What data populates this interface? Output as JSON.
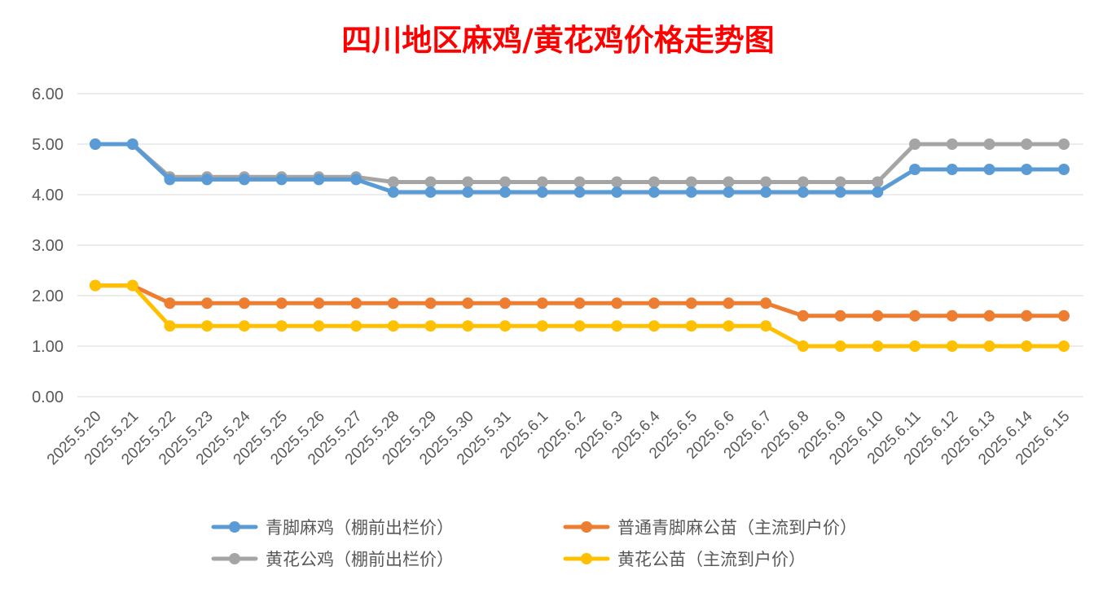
{
  "chart_data": {
    "type": "line",
    "title": "四川地区麻鸡/黄花鸡价格走势图",
    "xlabel": "",
    "ylabel": "",
    "ylim": [
      0,
      6
    ],
    "y_ticks": [
      "0.00",
      "1.00",
      "2.00",
      "3.00",
      "4.00",
      "5.00",
      "6.00"
    ],
    "grid": true,
    "legend_position": "bottom",
    "categories": [
      "2025.5.20",
      "2025.5.21",
      "2025.5.22",
      "2025.5.23",
      "2025.5.24",
      "2025.5.25",
      "2025.5.26",
      "2025.5.27",
      "2025.5.28",
      "2025.5.29",
      "2025.5.30",
      "2025.5.31",
      "2025.6.1",
      "2025.6.2",
      "2025.6.3",
      "2025.6.4",
      "2025.6.5",
      "2025.6.6",
      "2025.6.7",
      "2025.6.8",
      "2025.6.9",
      "2025.6.10",
      "2025.6.11",
      "2025.6.12",
      "2025.6.13",
      "2025.6.14",
      "2025.6.15"
    ],
    "series": [
      {
        "name": "青脚麻鸡（棚前出栏价）",
        "color": "#5b9bd5",
        "values": [
          5.0,
          5.0,
          4.3,
          4.3,
          4.3,
          4.3,
          4.3,
          4.3,
          4.05,
          4.05,
          4.05,
          4.05,
          4.05,
          4.05,
          4.05,
          4.05,
          4.05,
          4.05,
          4.05,
          4.05,
          4.05,
          4.05,
          4.5,
          4.5,
          4.5,
          4.5,
          4.5
        ]
      },
      {
        "name": "普通青脚麻公苗（主流到户价）",
        "color": "#ed7d31",
        "values": [
          2.2,
          2.2,
          1.85,
          1.85,
          1.85,
          1.85,
          1.85,
          1.85,
          1.85,
          1.85,
          1.85,
          1.85,
          1.85,
          1.85,
          1.85,
          1.85,
          1.85,
          1.85,
          1.85,
          1.6,
          1.6,
          1.6,
          1.6,
          1.6,
          1.6,
          1.6,
          1.6
        ]
      },
      {
        "name": "黄花公鸡（棚前出栏价）",
        "color": "#a5a5a5",
        "values": [
          5.0,
          5.0,
          4.35,
          4.35,
          4.35,
          4.35,
          4.35,
          4.35,
          4.25,
          4.25,
          4.25,
          4.25,
          4.25,
          4.25,
          4.25,
          4.25,
          4.25,
          4.25,
          4.25,
          4.25,
          4.25,
          4.25,
          5.0,
          5.0,
          5.0,
          5.0,
          5.0
        ]
      },
      {
        "name": "黄花公苗（主流到户价）",
        "color": "#ffc000",
        "values": [
          2.2,
          2.2,
          1.4,
          1.4,
          1.4,
          1.4,
          1.4,
          1.4,
          1.4,
          1.4,
          1.4,
          1.4,
          1.4,
          1.4,
          1.4,
          1.4,
          1.4,
          1.4,
          1.4,
          1.0,
          1.0,
          1.0,
          1.0,
          1.0,
          1.0,
          1.0,
          1.0
        ]
      }
    ],
    "draw_order": [
      2,
      0,
      1,
      3
    ]
  }
}
